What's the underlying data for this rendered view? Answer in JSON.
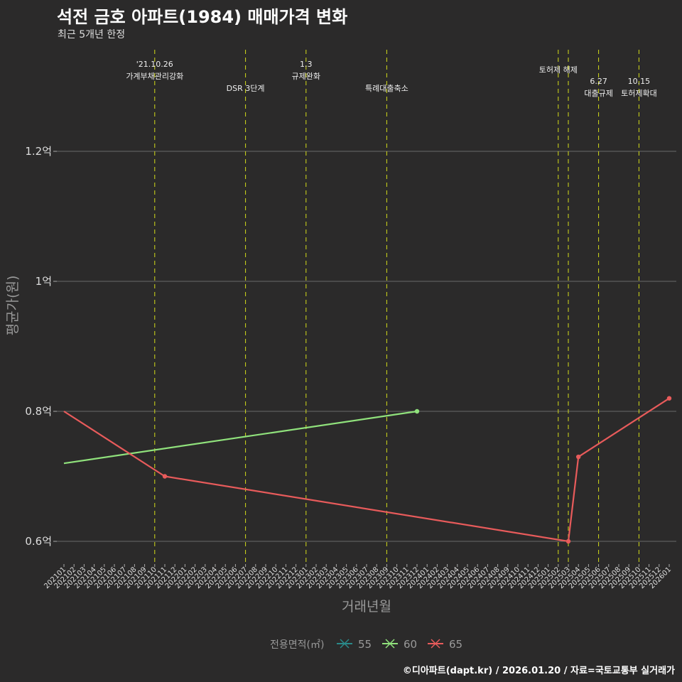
{
  "title": "석전 금호 아파트(1984) 매매가격 변화",
  "subtitle": "최근 5개년 한정",
  "caption": "©디아파트(dapt.kr) / 2026.01.20 / 자료=국토교통부 실거래가",
  "chart_data": {
    "type": "line",
    "title": "석전 금호 아파트(1984) 매매가격 변화",
    "xlabel": "거래년월",
    "ylabel": "평균가(원)",
    "ylim": [
      0.57,
      1.28
    ],
    "y_ticks": [
      {
        "value": 0.6,
        "label": "0.6억"
      },
      {
        "value": 0.8,
        "label": "0.8억"
      },
      {
        "value": 1.0,
        "label": "1억"
      },
      {
        "value": 1.2,
        "label": "1.2억"
      }
    ],
    "x_categories": [
      "202101",
      "202102",
      "202103",
      "202104",
      "202105",
      "202106",
      "202107",
      "202108",
      "202109",
      "202110",
      "202111",
      "202112",
      "202201",
      "202202",
      "202203",
      "202204",
      "202205",
      "202206",
      "202207",
      "202208",
      "202209",
      "202210",
      "202211",
      "202212",
      "202301",
      "202302",
      "202303",
      "202304",
      "202305",
      "202306",
      "202307",
      "202308",
      "202309",
      "202310",
      "202311",
      "202312",
      "202401",
      "202402",
      "202403",
      "202404",
      "202405",
      "202406",
      "202407",
      "202408",
      "202409",
      "202410",
      "202411",
      "202412",
      "202501",
      "202502",
      "202503",
      "202504",
      "202505",
      "202506",
      "202507",
      "202508",
      "202509",
      "202510",
      "202511",
      "202512",
      "202601"
    ],
    "legend": {
      "title": "전용면적(㎡)",
      "position": "bottom"
    },
    "series": [
      {
        "name": "55",
        "color": "#2a8a8a",
        "points": []
      },
      {
        "name": "60",
        "color": "#90e27c",
        "points": [
          {
            "x": "202101",
            "y": 0.72
          },
          {
            "x": "202312",
            "y": 0.8
          }
        ]
      },
      {
        "name": "65",
        "color": "#e85b5b",
        "points": [
          {
            "x": "202101",
            "y": 0.8
          },
          {
            "x": "202111",
            "y": 0.7
          },
          {
            "x": "202503",
            "y": 0.6
          },
          {
            "x": "202504",
            "y": 0.73
          },
          {
            "x": "202601",
            "y": 0.82
          }
        ]
      }
    ],
    "annotations": [
      {
        "x": "202110",
        "lines": [
          "'21.10.26",
          "가계부채관리강화"
        ],
        "row": 0
      },
      {
        "x": "202207",
        "lines": [
          "DSR 3단계"
        ],
        "row": 1
      },
      {
        "x": "202301",
        "lines": [
          "1.3",
          "규제완화"
        ],
        "row": 0
      },
      {
        "x": "202309",
        "lines": [
          "특례대출축소"
        ],
        "row": 1
      },
      {
        "x": "202502",
        "lines": [
          "토허제 해제"
        ],
        "row": "mid"
      },
      {
        "x": "202503",
        "lines": [],
        "row": 0
      },
      {
        "x": "202506",
        "lines": [
          "6.27",
          "대출규제"
        ],
        "row": 2
      },
      {
        "x": "202510",
        "lines": [
          "10.15",
          "토허제확대"
        ],
        "row": 2
      }
    ],
    "grid": true
  }
}
